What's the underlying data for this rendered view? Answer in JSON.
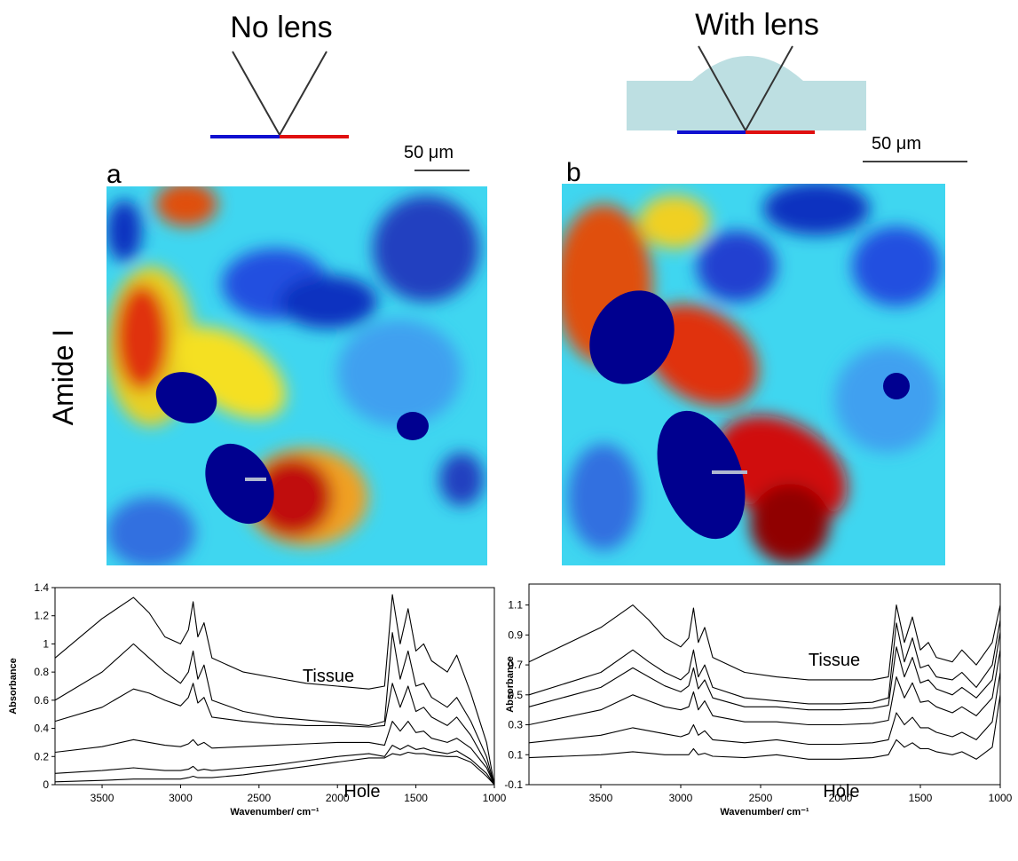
{
  "figure": {
    "panel_a": {
      "title": "No lens",
      "label": "a",
      "scale_bar": "50 μm"
    },
    "panel_b": {
      "title": "With lens",
      "label": "b",
      "scale_bar": "50 μm"
    },
    "row_label": "Amide I"
  },
  "chart_data": [
    {
      "type": "line",
      "ylabel": "Absorbance",
      "xlabel": "Wavenumber/ cm⁻¹",
      "annotations": [
        "Tissue",
        "Hole"
      ],
      "xlim": [
        3800,
        1000
      ],
      "xticks": [
        3500,
        3000,
        2500,
        2000,
        1500,
        1000
      ],
      "ylim": [
        0,
        1.4
      ],
      "yticks": [
        0,
        0.2,
        0.4,
        0.6,
        0.8,
        1,
        1.2,
        1.4
      ],
      "x": [
        3800,
        3500,
        3300,
        3200,
        3100,
        3000,
        2950,
        2920,
        2890,
        2850,
        2800,
        2600,
        2400,
        2200,
        2000,
        1800,
        1700,
        1650,
        1600,
        1550,
        1500,
        1450,
        1400,
        1300,
        1240,
        1150,
        1050,
        1000
      ],
      "series": [
        {
          "color": "#000000",
          "values": [
            0.9,
            1.18,
            1.33,
            1.22,
            1.05,
            1.0,
            1.1,
            1.3,
            1.05,
            1.15,
            0.9,
            0.8,
            0.76,
            0.72,
            0.7,
            0.68,
            0.7,
            1.35,
            1.0,
            1.25,
            0.95,
            1.0,
            0.88,
            0.8,
            0.92,
            0.65,
            0.3,
            0
          ]
        },
        {
          "color": "#000000",
          "values": [
            0.6,
            0.8,
            1.0,
            0.9,
            0.8,
            0.72,
            0.8,
            0.95,
            0.75,
            0.85,
            0.6,
            0.52,
            0.48,
            0.46,
            0.44,
            0.42,
            0.45,
            1.08,
            0.75,
            0.95,
            0.7,
            0.72,
            0.62,
            0.55,
            0.62,
            0.45,
            0.2,
            0
          ]
        },
        {
          "color": "#000000",
          "values": [
            0.45,
            0.55,
            0.68,
            0.65,
            0.6,
            0.56,
            0.62,
            0.72,
            0.58,
            0.62,
            0.48,
            0.45,
            0.43,
            0.42,
            0.42,
            0.41,
            0.42,
            0.72,
            0.55,
            0.7,
            0.52,
            0.55,
            0.48,
            0.42,
            0.48,
            0.35,
            0.15,
            0
          ]
        },
        {
          "color": "#000000",
          "values": [
            0.23,
            0.27,
            0.32,
            0.3,
            0.28,
            0.27,
            0.29,
            0.32,
            0.28,
            0.3,
            0.26,
            0.27,
            0.28,
            0.29,
            0.3,
            0.3,
            0.28,
            0.45,
            0.38,
            0.45,
            0.37,
            0.38,
            0.33,
            0.3,
            0.33,
            0.26,
            0.12,
            0
          ]
        },
        {
          "color": "#000000",
          "values": [
            0.08,
            0.1,
            0.12,
            0.11,
            0.1,
            0.1,
            0.11,
            0.13,
            0.1,
            0.11,
            0.1,
            0.12,
            0.14,
            0.17,
            0.2,
            0.22,
            0.2,
            0.28,
            0.25,
            0.28,
            0.25,
            0.26,
            0.24,
            0.22,
            0.24,
            0.18,
            0.08,
            0
          ]
        },
        {
          "color": "#000000",
          "values": [
            0.02,
            0.03,
            0.04,
            0.04,
            0.04,
            0.04,
            0.05,
            0.06,
            0.05,
            0.05,
            0.05,
            0.07,
            0.1,
            0.13,
            0.16,
            0.19,
            0.19,
            0.22,
            0.21,
            0.23,
            0.22,
            0.22,
            0.21,
            0.2,
            0.2,
            0.16,
            0.06,
            0
          ]
        }
      ]
    },
    {
      "type": "line",
      "ylabel": "Absorbance",
      "xlabel": "Wavenumber/ cm⁻¹",
      "annotations": [
        "Tissue",
        "Hole"
      ],
      "xlim": [
        3950,
        1000
      ],
      "xticks": [
        3500,
        3000,
        2500,
        2000,
        1500,
        1000
      ],
      "ylim": [
        -0.1,
        1.24
      ],
      "yticks": [
        -0.1,
        0.1,
        0.3,
        0.5,
        0.7,
        0.9,
        1.1
      ],
      "x": [
        3950,
        3500,
        3300,
        3200,
        3100,
        3000,
        2950,
        2920,
        2890,
        2850,
        2800,
        2600,
        2400,
        2200,
        2000,
        1800,
        1700,
        1650,
        1600,
        1550,
        1500,
        1450,
        1400,
        1300,
        1240,
        1150,
        1050,
        1000
      ],
      "series": [
        {
          "color": "#000000",
          "values": [
            0.72,
            0.95,
            1.1,
            1.0,
            0.88,
            0.82,
            0.88,
            1.08,
            0.85,
            0.95,
            0.75,
            0.65,
            0.62,
            0.6,
            0.6,
            0.6,
            0.62,
            1.1,
            0.85,
            1.02,
            0.8,
            0.85,
            0.75,
            0.72,
            0.8,
            0.7,
            0.85,
            1.1
          ]
        },
        {
          "color": "#000000",
          "values": [
            0.5,
            0.65,
            0.8,
            0.72,
            0.65,
            0.6,
            0.65,
            0.8,
            0.62,
            0.7,
            0.55,
            0.48,
            0.46,
            0.44,
            0.44,
            0.45,
            0.48,
            0.98,
            0.72,
            0.88,
            0.68,
            0.7,
            0.62,
            0.6,
            0.65,
            0.55,
            0.7,
            1.0
          ]
        },
        {
          "color": "#000000",
          "values": [
            0.42,
            0.55,
            0.68,
            0.62,
            0.56,
            0.52,
            0.56,
            0.68,
            0.54,
            0.6,
            0.48,
            0.42,
            0.42,
            0.4,
            0.4,
            0.41,
            0.43,
            0.82,
            0.62,
            0.75,
            0.58,
            0.6,
            0.54,
            0.5,
            0.55,
            0.48,
            0.6,
            0.92
          ]
        },
        {
          "color": "#000000",
          "values": [
            0.3,
            0.4,
            0.5,
            0.46,
            0.42,
            0.4,
            0.42,
            0.52,
            0.4,
            0.46,
            0.36,
            0.32,
            0.32,
            0.3,
            0.3,
            0.31,
            0.33,
            0.62,
            0.48,
            0.58,
            0.45,
            0.46,
            0.42,
            0.38,
            0.42,
            0.36,
            0.48,
            0.8
          ]
        },
        {
          "color": "#000000",
          "values": [
            0.18,
            0.23,
            0.28,
            0.26,
            0.24,
            0.22,
            0.24,
            0.3,
            0.23,
            0.26,
            0.2,
            0.18,
            0.2,
            0.17,
            0.17,
            0.18,
            0.2,
            0.38,
            0.3,
            0.35,
            0.28,
            0.28,
            0.25,
            0.22,
            0.25,
            0.2,
            0.32,
            0.65
          ]
        },
        {
          "color": "#000000",
          "values": [
            0.08,
            0.1,
            0.12,
            0.11,
            0.1,
            0.1,
            0.1,
            0.14,
            0.1,
            0.11,
            0.09,
            0.08,
            0.1,
            0.07,
            0.07,
            0.08,
            0.1,
            0.2,
            0.15,
            0.18,
            0.14,
            0.14,
            0.12,
            0.1,
            0.12,
            0.07,
            0.15,
            0.5
          ]
        }
      ]
    }
  ]
}
